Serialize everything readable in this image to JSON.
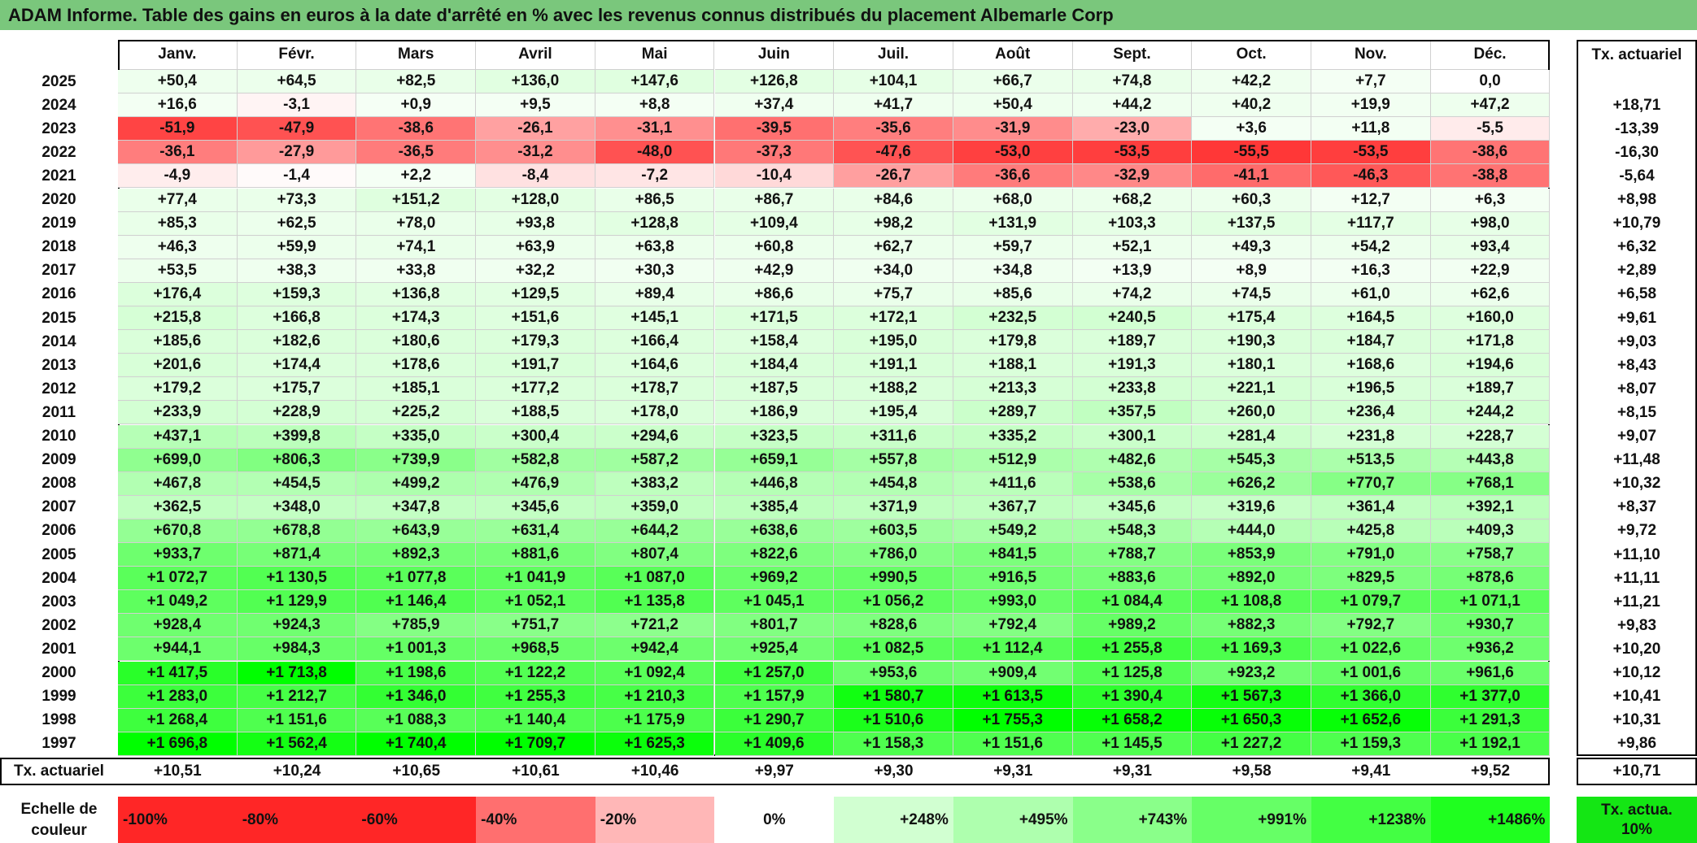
{
  "header": {
    "title": "ADAM Informe. Table des gains en euros à la date d'arrêté en % avec les revenus connus distribués du placement Albemarle Corp"
  },
  "table": {
    "columns": [
      "Janv.",
      "Févr.",
      "Mars",
      "Avril",
      "Mai",
      "Juin",
      "Juil.",
      "Août",
      "Sept.",
      "Oct.",
      "Nov.",
      "Déc."
    ],
    "tx_header": "Tx. actuariel",
    "rows": [
      {
        "year": "2025",
        "values": [
          "+50,4",
          "+64,5",
          "+82,5",
          "+136,0",
          "+147,6",
          "+126,8",
          "+104,1",
          "+66,7",
          "+74,8",
          "+42,2",
          "+7,7",
          "0,0"
        ]
      },
      {
        "year": "2024",
        "values": [
          "+16,6",
          "-3,1",
          "+0,9",
          "+9,5",
          "+8,8",
          "+37,4",
          "+41,7",
          "+50,4",
          "+44,2",
          "+40,2",
          "+19,9",
          "+47,2"
        ],
        "tx": "+18,71"
      },
      {
        "year": "2023",
        "values": [
          "-51,9",
          "-47,9",
          "-38,6",
          "-26,1",
          "-31,1",
          "-39,5",
          "-35,6",
          "-31,9",
          "-23,0",
          "+3,6",
          "+11,8",
          "-5,5"
        ],
        "tx": "-13,39"
      },
      {
        "year": "2022",
        "values": [
          "-36,1",
          "-27,9",
          "-36,5",
          "-31,2",
          "-48,0",
          "-37,3",
          "-47,6",
          "-53,0",
          "-53,5",
          "-55,5",
          "-53,5",
          "-38,6"
        ],
        "tx": "-16,30"
      },
      {
        "year": "2021",
        "values": [
          "-4,9",
          "-1,4",
          "+2,2",
          "-8,4",
          "-7,2",
          "-10,4",
          "-26,7",
          "-36,6",
          "-32,9",
          "-41,1",
          "-46,3",
          "-38,8"
        ],
        "tx": "-5,64"
      },
      {
        "year": "2020",
        "values": [
          "+77,4",
          "+73,3",
          "+151,2",
          "+128,0",
          "+86,5",
          "+86,7",
          "+84,6",
          "+68,0",
          "+68,2",
          "+60,3",
          "+12,7",
          "+6,3"
        ],
        "tx": "+8,98"
      },
      {
        "year": "2019",
        "values": [
          "+85,3",
          "+62,5",
          "+78,0",
          "+93,8",
          "+128,8",
          "+109,4",
          "+98,2",
          "+131,9",
          "+103,3",
          "+137,5",
          "+117,7",
          "+98,0"
        ],
        "tx": "+10,79"
      },
      {
        "year": "2018",
        "values": [
          "+46,3",
          "+59,9",
          "+74,1",
          "+63,9",
          "+63,8",
          "+60,8",
          "+62,7",
          "+59,7",
          "+52,1",
          "+49,3",
          "+54,2",
          "+93,4"
        ],
        "tx": "+6,32"
      },
      {
        "year": "2017",
        "values": [
          "+53,5",
          "+38,3",
          "+33,8",
          "+32,2",
          "+30,3",
          "+42,9",
          "+34,0",
          "+34,8",
          "+13,9",
          "+8,9",
          "+16,3",
          "+22,9"
        ],
        "tx": "+2,89"
      },
      {
        "year": "2016",
        "values": [
          "+176,4",
          "+159,3",
          "+136,8",
          "+129,5",
          "+89,4",
          "+86,6",
          "+75,7",
          "+85,6",
          "+74,2",
          "+74,5",
          "+61,0",
          "+62,6"
        ],
        "tx": "+6,58"
      },
      {
        "year": "2015",
        "values": [
          "+215,8",
          "+166,8",
          "+174,3",
          "+151,6",
          "+145,1",
          "+171,5",
          "+172,1",
          "+232,5",
          "+240,5",
          "+175,4",
          "+164,5",
          "+160,0"
        ],
        "tx": "+9,61"
      },
      {
        "year": "2014",
        "values": [
          "+185,6",
          "+182,6",
          "+180,6",
          "+179,3",
          "+166,4",
          "+158,4",
          "+195,0",
          "+179,8",
          "+189,7",
          "+190,3",
          "+184,7",
          "+171,8"
        ],
        "tx": "+9,03"
      },
      {
        "year": "2013",
        "values": [
          "+201,6",
          "+174,4",
          "+178,6",
          "+191,7",
          "+164,6",
          "+184,4",
          "+191,1",
          "+188,1",
          "+191,3",
          "+180,1",
          "+168,6",
          "+194,6"
        ],
        "tx": "+8,43"
      },
      {
        "year": "2012",
        "values": [
          "+179,2",
          "+175,7",
          "+185,1",
          "+177,2",
          "+178,7",
          "+187,5",
          "+188,2",
          "+213,3",
          "+233,8",
          "+221,1",
          "+196,5",
          "+189,7"
        ],
        "tx": "+8,07"
      },
      {
        "year": "2011",
        "values": [
          "+233,9",
          "+228,9",
          "+225,2",
          "+188,5",
          "+178,0",
          "+186,9",
          "+195,4",
          "+289,7",
          "+357,5",
          "+260,0",
          "+236,4",
          "+244,2"
        ],
        "tx": "+8,15"
      },
      {
        "year": "2010",
        "values": [
          "+437,1",
          "+399,8",
          "+335,0",
          "+300,4",
          "+294,6",
          "+323,5",
          "+311,6",
          "+335,2",
          "+300,1",
          "+281,4",
          "+231,8",
          "+228,7"
        ],
        "tx": "+9,07"
      },
      {
        "year": "2009",
        "values": [
          "+699,0",
          "+806,3",
          "+739,9",
          "+582,8",
          "+587,2",
          "+659,1",
          "+557,8",
          "+512,9",
          "+482,6",
          "+545,3",
          "+513,5",
          "+443,8"
        ],
        "tx": "+11,48"
      },
      {
        "year": "2008",
        "values": [
          "+467,8",
          "+454,5",
          "+499,2",
          "+476,9",
          "+383,2",
          "+446,8",
          "+454,8",
          "+411,6",
          "+538,6",
          "+626,2",
          "+770,7",
          "+768,1"
        ],
        "tx": "+10,32"
      },
      {
        "year": "2007",
        "values": [
          "+362,5",
          "+348,0",
          "+347,8",
          "+345,6",
          "+359,0",
          "+385,4",
          "+371,9",
          "+367,7",
          "+345,6",
          "+319,6",
          "+361,4",
          "+392,1"
        ],
        "tx": "+8,37"
      },
      {
        "year": "2006",
        "values": [
          "+670,8",
          "+678,8",
          "+643,9",
          "+631,4",
          "+644,2",
          "+638,6",
          "+603,5",
          "+549,2",
          "+548,3",
          "+444,0",
          "+425,8",
          "+409,3"
        ],
        "tx": "+9,72"
      },
      {
        "year": "2005",
        "values": [
          "+933,7",
          "+871,4",
          "+892,3",
          "+881,6",
          "+807,4",
          "+822,6",
          "+786,0",
          "+841,5",
          "+788,7",
          "+853,9",
          "+791,0",
          "+758,7"
        ],
        "tx": "+11,10"
      },
      {
        "year": "2004",
        "values": [
          "+1 072,7",
          "+1 130,5",
          "+1 077,8",
          "+1 041,9",
          "+1 087,0",
          "+969,2",
          "+990,5",
          "+916,5",
          "+883,6",
          "+892,0",
          "+829,5",
          "+878,6"
        ],
        "tx": "+11,11"
      },
      {
        "year": "2003",
        "values": [
          "+1 049,2",
          "+1 129,9",
          "+1 146,4",
          "+1 052,1",
          "+1 135,8",
          "+1 045,1",
          "+1 056,2",
          "+993,0",
          "+1 084,4",
          "+1 108,8",
          "+1 079,7",
          "+1 071,1"
        ],
        "tx": "+11,21"
      },
      {
        "year": "2002",
        "values": [
          "+928,4",
          "+924,3",
          "+785,9",
          "+751,7",
          "+721,2",
          "+801,7",
          "+828,6",
          "+792,4",
          "+989,2",
          "+882,3",
          "+792,7",
          "+930,7"
        ],
        "tx": "+9,83"
      },
      {
        "year": "2001",
        "values": [
          "+944,1",
          "+984,3",
          "+1 001,3",
          "+968,5",
          "+942,4",
          "+925,4",
          "+1 082,5",
          "+1 112,4",
          "+1 255,8",
          "+1 169,3",
          "+1 022,6",
          "+936,2"
        ],
        "tx": "+10,20"
      },
      {
        "year": "2000",
        "values": [
          "+1 417,5",
          "+1 713,8",
          "+1 198,6",
          "+1 122,2",
          "+1 092,4",
          "+1 257,0",
          "+953,6",
          "+909,4",
          "+1 125,8",
          "+923,2",
          "+1 001,6",
          "+961,6"
        ],
        "tx": "+10,12"
      },
      {
        "year": "1999",
        "values": [
          "+1 283,0",
          "+1 212,7",
          "+1 346,0",
          "+1 255,3",
          "+1 210,3",
          "+1 157,9",
          "+1 580,7",
          "+1 613,5",
          "+1 390,4",
          "+1 567,3",
          "+1 366,0",
          "+1 377,0"
        ],
        "tx": "+10,41"
      },
      {
        "year": "1998",
        "values": [
          "+1 268,4",
          "+1 151,6",
          "+1 088,3",
          "+1 140,4",
          "+1 175,9",
          "+1 290,7",
          "+1 510,6",
          "+1 755,3",
          "+1 658,2",
          "+1 650,3",
          "+1 652,6",
          "+1 291,3"
        ],
        "tx": "+10,31"
      },
      {
        "year": "1997",
        "values": [
          "+1 696,8",
          "+1 562,4",
          "+1 740,4",
          "+1 709,7",
          "+1 625,3",
          "+1 409,6",
          "+1 158,3",
          "+1 151,6",
          "+1 145,5",
          "+1 227,2",
          "+1 159,3",
          "+1 192,1"
        ],
        "tx": "+9,86"
      }
    ],
    "footer": {
      "label": "Tx. actuariel",
      "values": [
        "+10,51",
        "+10,24",
        "+10,65",
        "+10,61",
        "+10,46",
        "+9,97",
        "+9,30",
        "+9,31",
        "+9,31",
        "+9,58",
        "+9,41",
        "+9,52"
      ],
      "tx": "+10,71"
    }
  },
  "scale": {
    "label": "Echelle de couleur",
    "steps": [
      "-100%",
      "-80%",
      "-60%",
      "-40%",
      "-20%",
      "0%",
      "+248%",
      "+495%",
      "+743%",
      "+991%",
      "+1238%",
      "+1486%"
    ],
    "tx_label": "Tx. actua. 10%"
  }
}
